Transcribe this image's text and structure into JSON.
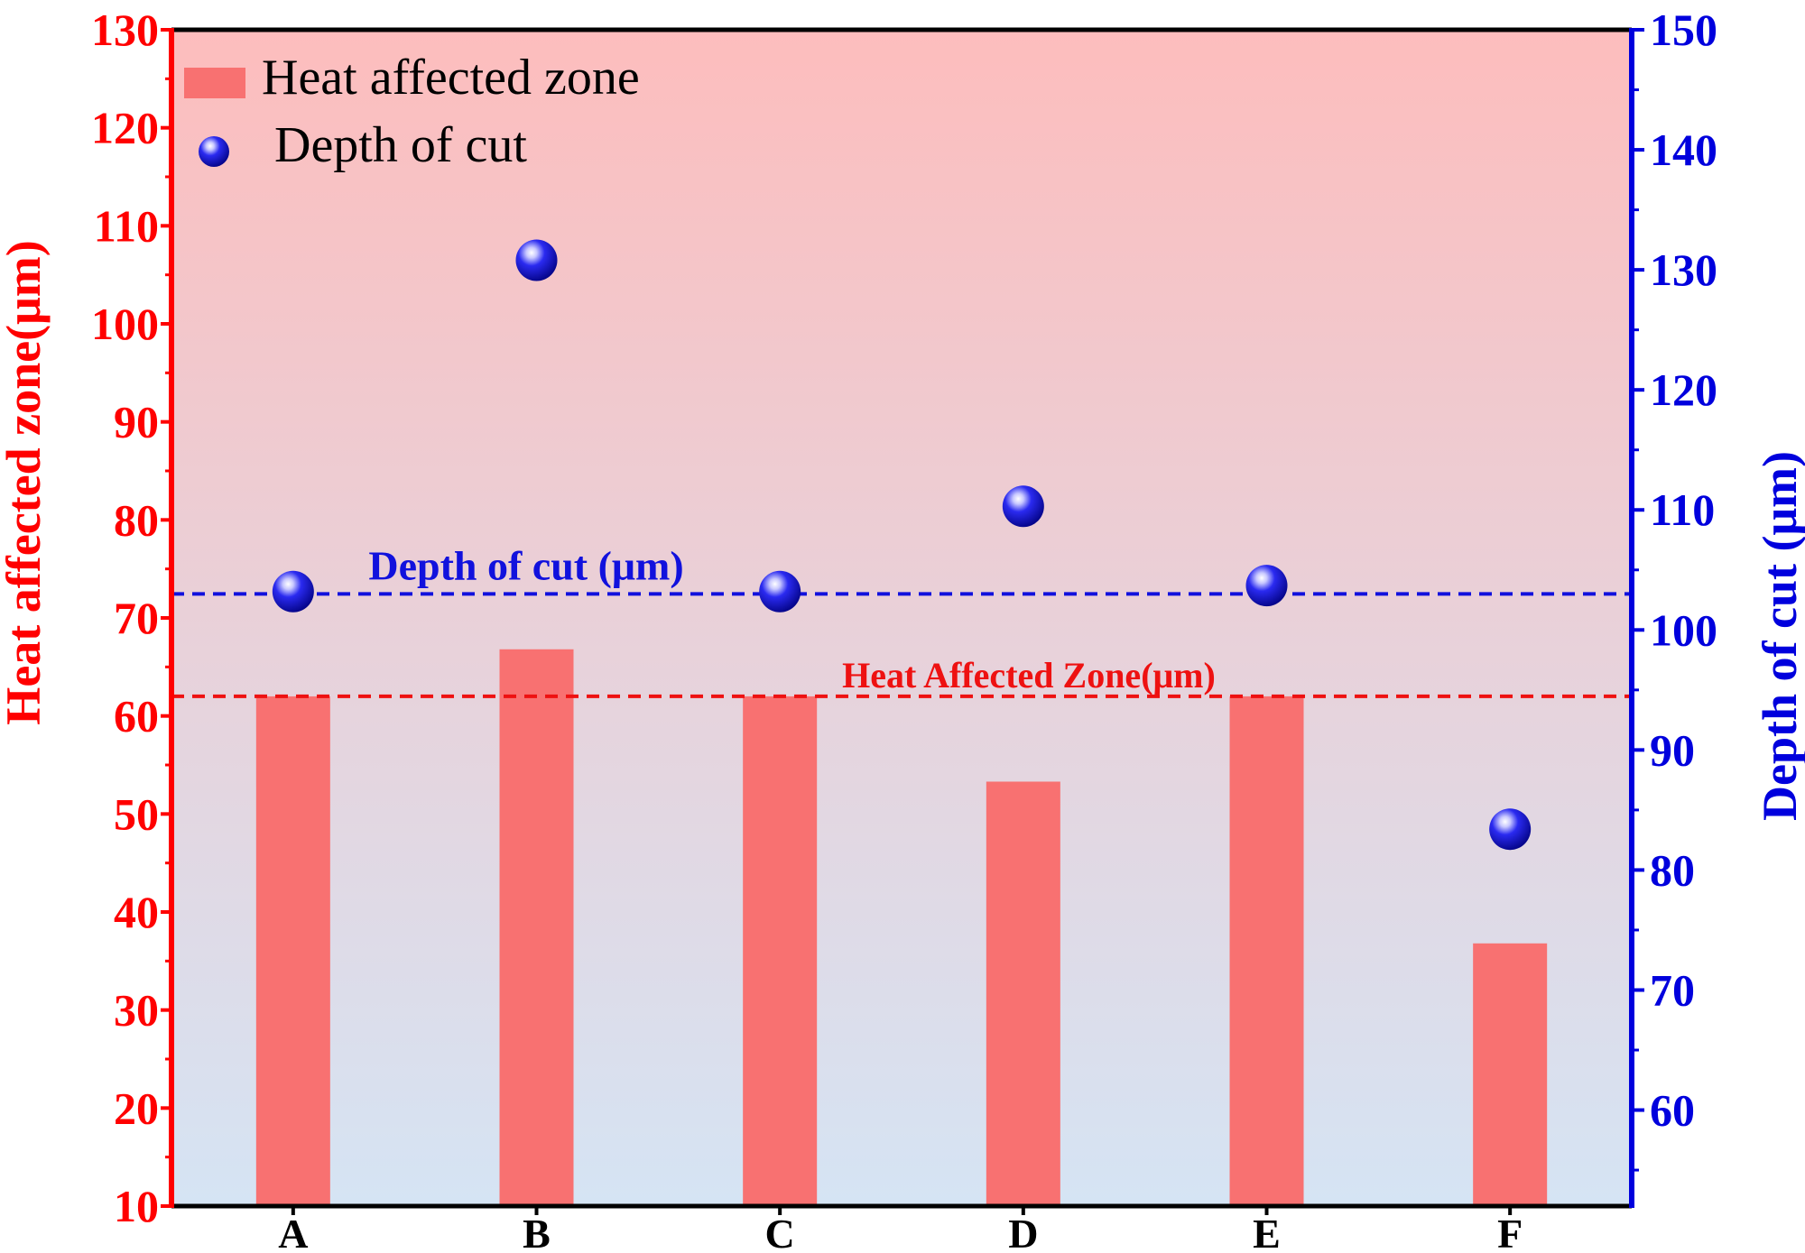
{
  "chart_data": {
    "type": "bar",
    "categories": [
      "A",
      "B",
      "C",
      "D",
      "E",
      "F"
    ],
    "series": [
      {
        "name": "Heat affected zone",
        "kind": "bar",
        "axis": "left",
        "values": [
          62,
          66.8,
          62,
          53.3,
          62,
          36.8
        ],
        "color": "#f87171"
      },
      {
        "name": "Depth of cut",
        "kind": "scatter",
        "axis": "right",
        "values": [
          103.2,
          130.8,
          103.2,
          110.3,
          103.7,
          83.4
        ],
        "color": "#1515e0"
      }
    ],
    "left_axis": {
      "label": "Heat affected zone(μm)",
      "ylim": [
        10,
        130
      ],
      "ticks": [
        "10",
        "20",
        "30",
        "40",
        "50",
        "60",
        "70",
        "80",
        "90",
        "100",
        "110",
        "120",
        "130"
      ],
      "color": "#ff0000"
    },
    "right_axis": {
      "label": "Depth of cut (μm)",
      "ylim": [
        52,
        150
      ],
      "ticks": [
        "60",
        "70",
        "80",
        "90",
        "100",
        "110",
        "120",
        "130",
        "140",
        "150"
      ],
      "color": "#0000dd"
    },
    "reference_lines": [
      {
        "label": "Depth of cut (μm)",
        "axis": "right",
        "value": 103,
        "color": "#1111dd"
      },
      {
        "label": "Heat Affected Zone(μm)",
        "axis": "left",
        "value": 62,
        "color": "#ee1111"
      }
    ],
    "legend": {
      "position": "top-left",
      "items": [
        {
          "label": "Heat affected zone",
          "marker": "bar"
        },
        {
          "label": "Depth of cut",
          "marker": "sphere"
        }
      ]
    },
    "background_gradient": {
      "top": "#fdbdbd",
      "bottom": "#d5e4f4"
    },
    "title": "",
    "xlabel": ""
  }
}
